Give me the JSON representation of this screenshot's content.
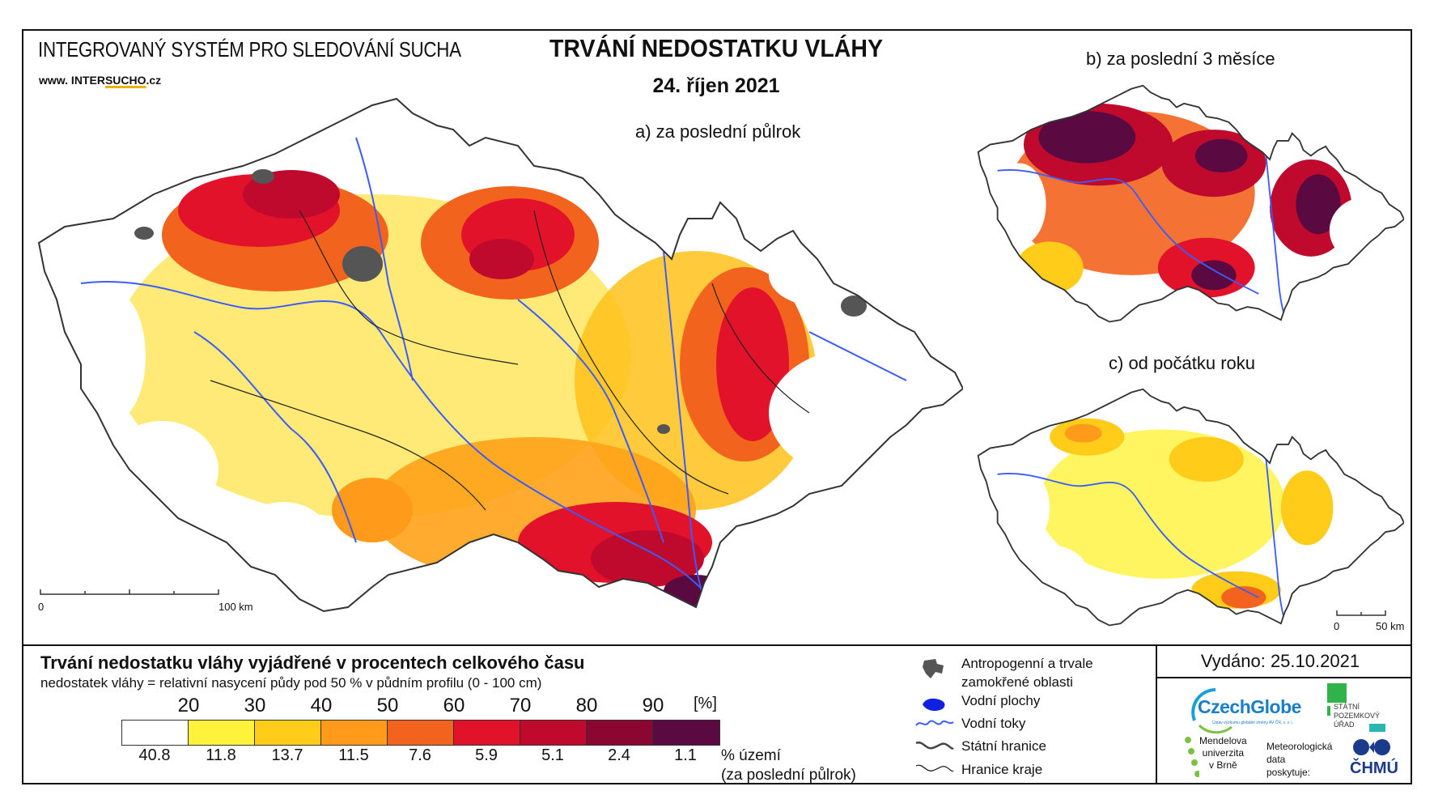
{
  "header": {
    "system_title": "INTEGROVANÝ SYSTÉM PRO SLEDOVÁNÍ SUCHA",
    "url_prefix": "www. INTER",
    "url_brand": "SUCHO",
    "url_suffix": ".cz",
    "main_title": "TRVÁNÍ NEDOSTATKU VLÁHY",
    "date": "24. říjen 2021"
  },
  "panels": {
    "a_label": "a) za poslední půlrok",
    "b_label": "b) za poslední 3 měsíce",
    "c_label": "c) od počátku roku"
  },
  "scale_main": {
    "zero": "0",
    "end": "100 km"
  },
  "scale_small": {
    "zero": "0",
    "end": "50 km"
  },
  "legend": {
    "title": "Trvání nedostatku vláhy vyjádřené v procentech celkového času",
    "subtitle": "nedostatek vláhy = relativní nasycení půdy pod 50 % v půdním profilu (0 - 100 cm)",
    "unit": "[%]",
    "ticks": [
      "20",
      "30",
      "40",
      "50",
      "60",
      "70",
      "80",
      "90"
    ],
    "colors": [
      "#ffffff",
      "#fff23a",
      "#ffcc1a",
      "#ff9a1a",
      "#f2631e",
      "#e2122a",
      "#bf0a2e",
      "#8c0632",
      "#5a0a40"
    ],
    "percent_area": [
      "40.8",
      "11.8",
      "13.7",
      "11.5",
      "7.6",
      "5.9",
      "5.1",
      "2.4",
      "1.1"
    ],
    "percent_caption_1": "% území",
    "percent_caption_2": "(za poslední půlrok)"
  },
  "map_legend": {
    "anthropogenic_1": "Antropogenní a trvale",
    "anthropogenic_2": "zamokřené oblasti",
    "water_bodies": "Vodní plochy",
    "rivers": "Vodní toky",
    "state_border": "Státní hranice",
    "region_border": "Hranice kraje"
  },
  "issued": "Vydáno: 25.10.2021",
  "logos": {
    "czechglobe": "CzechGlobe",
    "czechglobe_sub": "Ústav výzkumu globální změny AV ČR, v. v. i.",
    "spu_1": "STÁTNÍ",
    "spu_2": "POZEMKOVÝ",
    "spu_3": "ÚŘAD",
    "mendel_1": "Mendelova",
    "mendel_2": "univerzita",
    "mendel_3": "v Brně",
    "meteo_1": "Meteorologická",
    "meteo_2": "data",
    "meteo_3": "poskytuje:",
    "chmu": "ČHMÚ"
  }
}
